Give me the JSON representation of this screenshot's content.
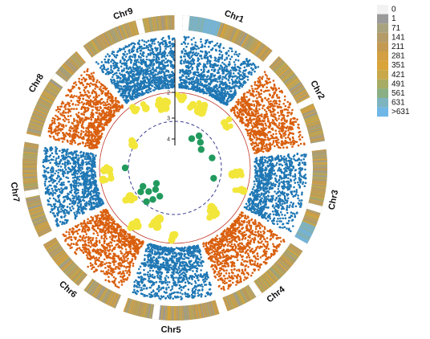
{
  "chart_data": {
    "type": "circos",
    "title": "",
    "chromosomes": [
      "Chr1",
      "Chr2",
      "Chr3",
      "Chr4",
      "Chr5",
      "Chr6",
      "Chr7",
      "Chr8",
      "Chr9"
    ],
    "density_legend": {
      "labels": [
        "0",
        "1",
        "71",
        "141",
        "211",
        "281",
        "351",
        "421",
        "491",
        "561",
        "631",
        ">631"
      ],
      "colors": [
        "#f2f2f2",
        "#9a9a9a",
        "#a8a27f",
        "#b49b67",
        "#c49a52",
        "#d2a042",
        "#d9a43a",
        "#c8a84a",
        "#a7ab63",
        "#8aaf84",
        "#7db4c0",
        "#6fb7e6"
      ]
    },
    "inner_axis": {
      "ticks": [
        "2",
        "3",
        "4"
      ]
    },
    "series": [
      {
        "type": "manhattan",
        "colors": [
          "#1f77b4",
          "#d95f0e"
        ]
      },
      {
        "type": "bubble",
        "colors": [
          "#f2e63b",
          "#229a5e"
        ]
      }
    ]
  }
}
